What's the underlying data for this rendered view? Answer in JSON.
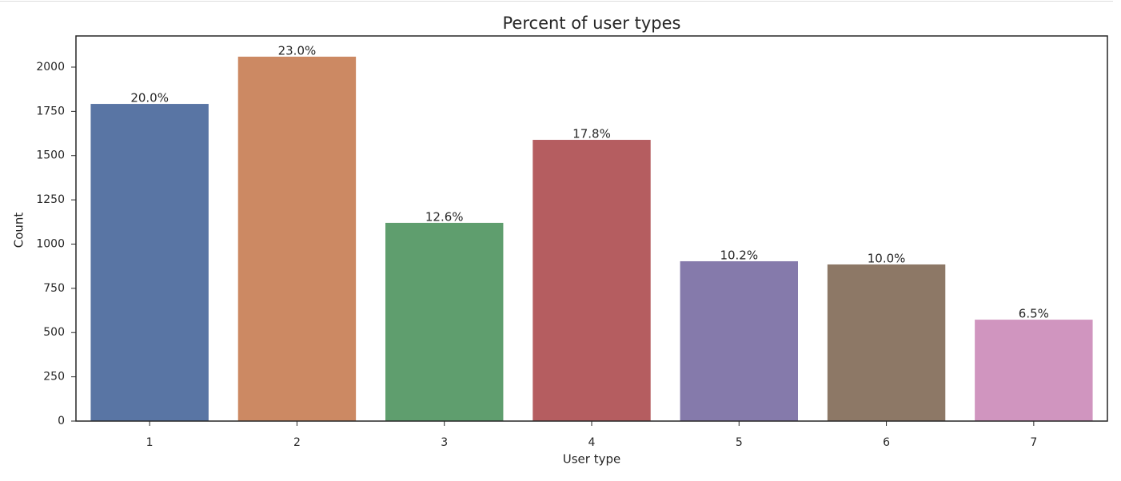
{
  "chart_data": {
    "type": "bar",
    "title": "Percent of user types",
    "xlabel": "User type",
    "ylabel": "Count",
    "categories": [
      "1",
      "2",
      "3",
      "4",
      "5",
      "6",
      "7"
    ],
    "values": [
      1792,
      2059,
      1120,
      1589,
      903,
      885,
      573
    ],
    "annotations": [
      "20.0%",
      "23.0%",
      "12.6%",
      "17.8%",
      "10.2%",
      "10.0%",
      "6.5%"
    ],
    "colors": [
      "#5975a4",
      "#cc8963",
      "#5f9e6e",
      "#b55d60",
      "#857aab",
      "#8d7866",
      "#d095bf"
    ],
    "ylim": [
      0,
      2176
    ],
    "yticks": [
      0,
      250,
      500,
      750,
      1000,
      1250,
      1500,
      1750,
      2000
    ],
    "grid": false
  }
}
